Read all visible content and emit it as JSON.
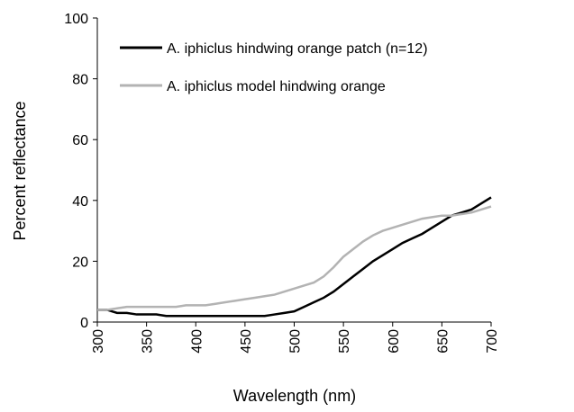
{
  "chart_data": {
    "type": "line",
    "x_label": "Wavelength (nm)",
    "y_label": "Percent reflectance",
    "x": [
      300,
      310,
      320,
      330,
      340,
      350,
      360,
      370,
      380,
      390,
      400,
      410,
      420,
      430,
      440,
      450,
      460,
      470,
      480,
      490,
      500,
      510,
      520,
      530,
      540,
      550,
      560,
      570,
      580,
      590,
      600,
      610,
      620,
      630,
      640,
      650,
      660,
      670,
      680,
      690,
      700
    ],
    "series": [
      {
        "name": "A. iphiclus hindwing orange patch (n=12)",
        "color": "#000000",
        "values": [
          4,
          4,
          3,
          3,
          2.5,
          2.5,
          2.5,
          2,
          2,
          2,
          2,
          2,
          2,
          2,
          2,
          2,
          2,
          2,
          2.5,
          3,
          3.5,
          5,
          6.5,
          8,
          10,
          12.5,
          15,
          17.5,
          20,
          22,
          24,
          26,
          27.5,
          29,
          31,
          33,
          35,
          36,
          37,
          39,
          41
        ]
      },
      {
        "name": "A. iphiclus model hindwing orange",
        "color": "#b3b3b3",
        "values": [
          4,
          4,
          4.5,
          5,
          5,
          5,
          5,
          5,
          5,
          5.5,
          5.5,
          5.5,
          6,
          6.5,
          7,
          7.5,
          8,
          8.5,
          9,
          10,
          11,
          12,
          13,
          15,
          18,
          21.5,
          24,
          26.5,
          28.5,
          30,
          31,
          32,
          33,
          34,
          34.5,
          35,
          35,
          35.5,
          36,
          37,
          38
        ]
      }
    ],
    "xlim": [
      300,
      700
    ],
    "xticks": [
      300,
      350,
      400,
      450,
      500,
      550,
      600,
      650,
      700
    ],
    "ylim": [
      0,
      100
    ],
    "yticks": [
      0,
      20,
      40,
      60,
      80,
      100
    ],
    "grid": false,
    "legend": "top"
  }
}
